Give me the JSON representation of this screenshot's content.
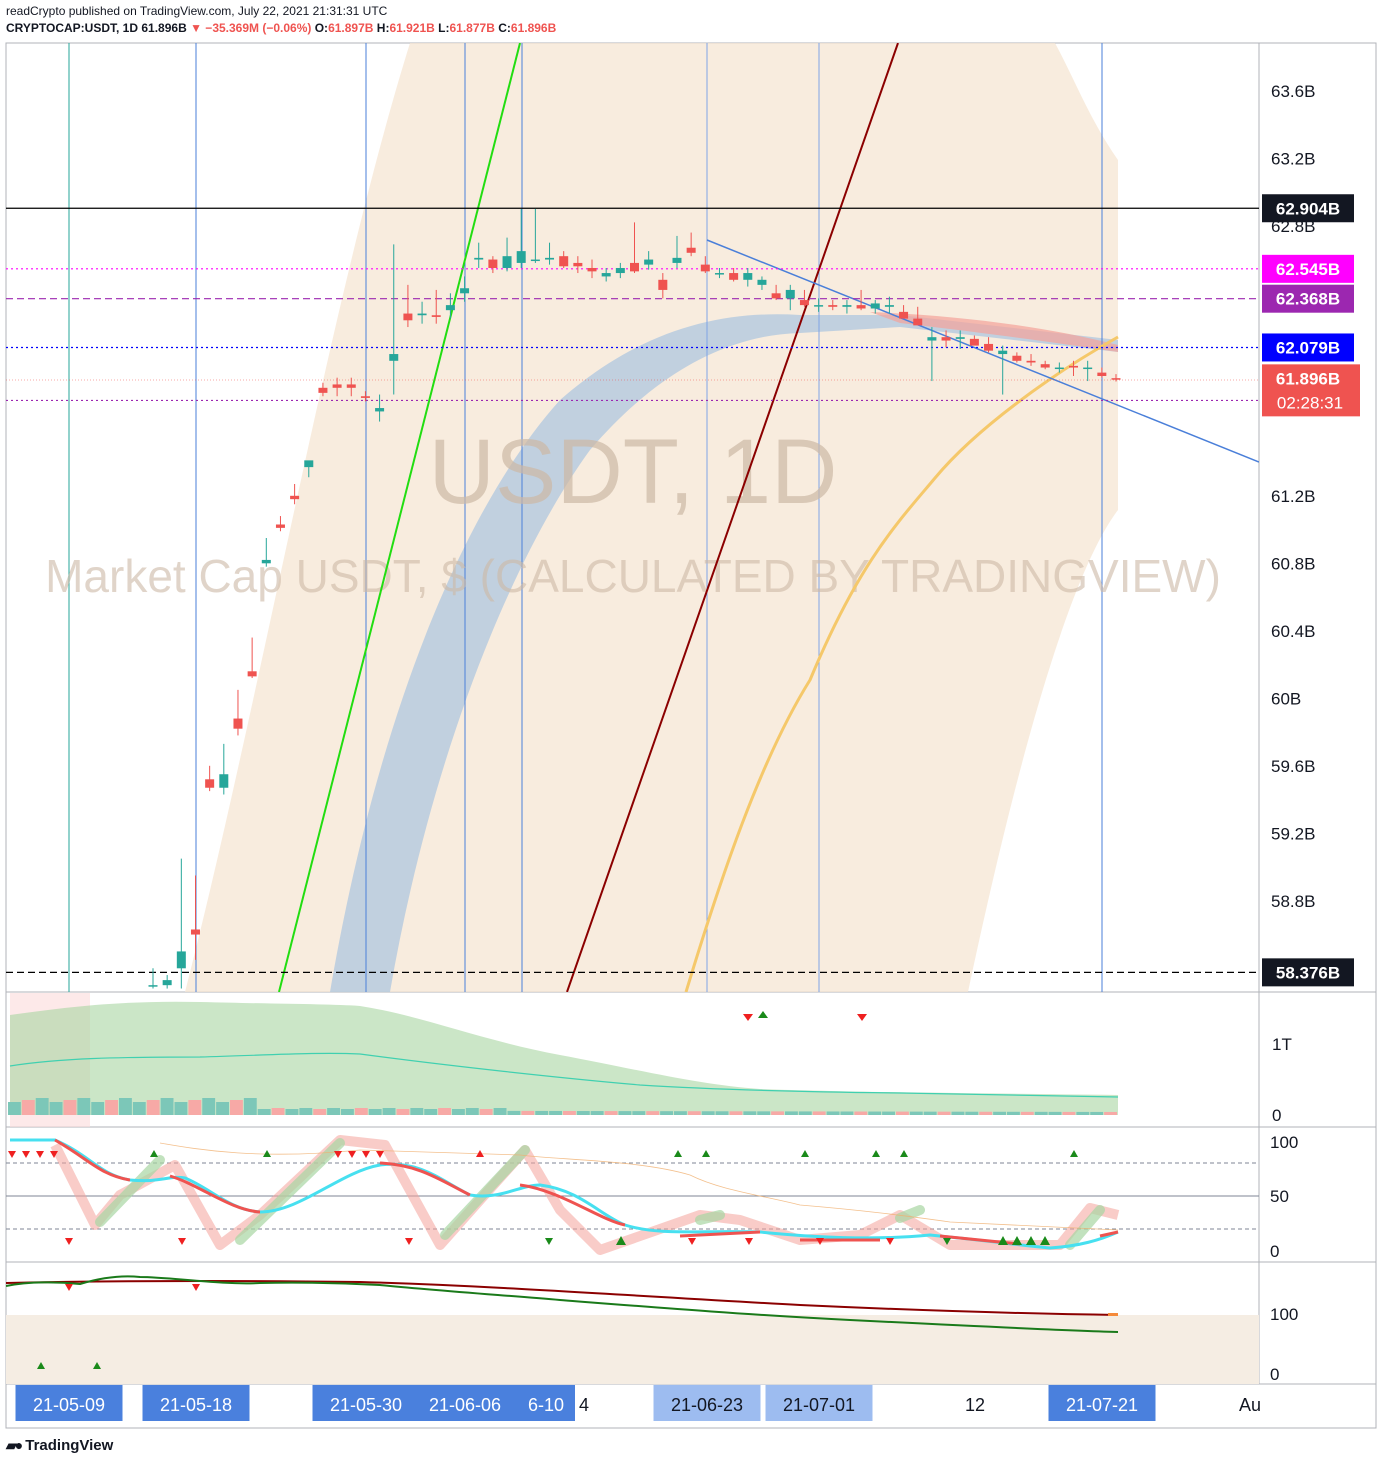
{
  "header": {
    "published_line": "readCrypto published on TradingView.com, July 22, 2021 21:31:31 UTC",
    "symbol_line": "CRYPTOCAP:USDT, 1D",
    "price": "61.896B",
    "change": "▼ −35.369M (−0.06%)",
    "open_label": "O:",
    "open": "61.897B",
    "high_label": "H:",
    "high": "61.921B",
    "low_label": "L:",
    "low": "61.877B",
    "close_label": "C:",
    "close": "61.896B"
  },
  "watermark": {
    "title": "USDT, 1D",
    "subtitle": "Market Cap USDT, $ (CALCULATED BY TRADINGVIEW)"
  },
  "footer": {
    "brand": "TradingView"
  },
  "colors": {
    "up": "#26a69a",
    "down": "#ef5350",
    "green_line": "#22dd11",
    "darkred_line": "#8b0000",
    "blue_trend": "#4a7fd9",
    "orange_ma": "#f5c86a",
    "band_fill": "#f5e6d3",
    "blue_band": "#a9c4e0",
    "magenta": "#ff00ff",
    "purple": "#9c27b0",
    "blue_level": "#0000ff",
    "date_label": "#4a80dd"
  },
  "chart_data": {
    "type": "candlestick",
    "y_axis": {
      "ticks": [
        "63.6B",
        "63.2B",
        "62.8B",
        "61.2B",
        "60.8B",
        "60.4B",
        "60B",
        "59.6B",
        "59.2B",
        "58.8B"
      ],
      "tick_values": [
        63.6,
        63.2,
        62.8,
        61.2,
        60.8,
        60.4,
        60.0,
        59.6,
        59.2,
        58.8
      ],
      "range": [
        58.28,
        63.9
      ]
    },
    "x_axis_labels": [
      "21-05-09",
      "21-05-18",
      "21-05-30",
      "21-06-06",
      "6-10",
      "4",
      "21-06-23",
      "21-07-01",
      "12",
      "21-07-21",
      "Au"
    ],
    "vertical_marker_dates": [
      "21-05-09",
      "21-05-18",
      "21-05-30",
      "21-06-06",
      "21-06-10",
      "21-06-23",
      "21-07-01",
      "21-07-21"
    ],
    "horizontal_levels": [
      {
        "value": 62.904,
        "label": "62.904B",
        "style": "solid",
        "color": "#000000"
      },
      {
        "value": 62.545,
        "label": "62.545B",
        "style": "dotted",
        "color": "#ff00ff"
      },
      {
        "value": 62.368,
        "label": "62.368B",
        "style": "dashed",
        "color": "#9c27b0"
      },
      {
        "value": 62.079,
        "label": "62.079B",
        "style": "dotted",
        "color": "#0000ff"
      },
      {
        "value": 61.765,
        "label": "61.765B",
        "style": "dotted",
        "color": "#9c27b0"
      },
      {
        "value": 58.376,
        "label": "58.376B",
        "style": "dashed",
        "color": "#000000"
      }
    ],
    "last_price": {
      "value": 61.896,
      "label": "61.896B",
      "countdown": "02:28:31"
    },
    "candles": [
      {
        "o": 58.3,
        "h": 58.4,
        "l": 58.28,
        "c": 58.3
      },
      {
        "o": 58.3,
        "h": 58.36,
        "l": 58.28,
        "c": 58.33
      },
      {
        "o": 58.4,
        "h": 59.05,
        "l": 58.28,
        "c": 58.5
      },
      {
        "o": 58.63,
        "h": 58.95,
        "l": 58.45,
        "c": 58.6
      },
      {
        "o": 59.52,
        "h": 59.6,
        "l": 59.45,
        "c": 59.47
      },
      {
        "o": 59.47,
        "h": 59.73,
        "l": 59.43,
        "c": 59.55
      },
      {
        "o": 59.88,
        "h": 60.05,
        "l": 59.78,
        "c": 59.82
      },
      {
        "o": 60.16,
        "h": 60.36,
        "l": 60.12,
        "c": 60.13
      },
      {
        "o": 60.8,
        "h": 60.95,
        "l": 60.78,
        "c": 60.82
      },
      {
        "o": 61.03,
        "h": 61.08,
        "l": 60.99,
        "c": 61.01
      },
      {
        "o": 61.2,
        "h": 61.27,
        "l": 61.15,
        "c": 61.18
      },
      {
        "o": 61.37,
        "h": 61.4,
        "l": 61.31,
        "c": 61.41
      },
      {
        "o": 61.84,
        "h": 61.87,
        "l": 61.79,
        "c": 61.81
      },
      {
        "o": 61.86,
        "h": 61.9,
        "l": 61.79,
        "c": 61.84
      },
      {
        "o": 61.86,
        "h": 61.9,
        "l": 61.79,
        "c": 61.84
      },
      {
        "o": 61.79,
        "h": 61.82,
        "l": 61.76,
        "c": 61.78
      },
      {
        "o": 61.7,
        "h": 61.8,
        "l": 61.64,
        "c": 61.72
      },
      {
        "o": 62.0,
        "h": 62.69,
        "l": 61.8,
        "c": 62.04
      },
      {
        "o": 62.28,
        "h": 62.45,
        "l": 62.2,
        "c": 62.24
      },
      {
        "o": 62.27,
        "h": 62.35,
        "l": 62.22,
        "c": 62.28
      },
      {
        "o": 62.27,
        "h": 62.42,
        "l": 62.22,
        "c": 62.26
      },
      {
        "o": 62.3,
        "h": 62.4,
        "l": 62.25,
        "c": 62.33
      },
      {
        "o": 62.4,
        "h": 62.5,
        "l": 62.35,
        "c": 62.43
      },
      {
        "o": 62.6,
        "h": 62.7,
        "l": 62.55,
        "c": 62.61
      },
      {
        "o": 62.6,
        "h": 62.62,
        "l": 62.52,
        "c": 62.55
      },
      {
        "o": 62.55,
        "h": 62.73,
        "l": 62.53,
        "c": 62.62
      },
      {
        "o": 62.58,
        "h": 62.9,
        "l": 62.55,
        "c": 62.65
      },
      {
        "o": 62.6,
        "h": 62.9,
        "l": 62.58,
        "c": 62.6
      },
      {
        "o": 62.6,
        "h": 62.7,
        "l": 62.57,
        "c": 62.61
      },
      {
        "o": 62.62,
        "h": 62.65,
        "l": 62.55,
        "c": 62.56
      },
      {
        "o": 62.58,
        "h": 62.62,
        "l": 62.52,
        "c": 62.56
      },
      {
        "o": 62.55,
        "h": 62.6,
        "l": 62.49,
        "c": 62.53
      },
      {
        "o": 62.5,
        "h": 62.55,
        "l": 62.47,
        "c": 62.52
      },
      {
        "o": 62.52,
        "h": 62.58,
        "l": 62.49,
        "c": 62.55
      },
      {
        "o": 62.58,
        "h": 62.82,
        "l": 62.52,
        "c": 62.53
      },
      {
        "o": 62.57,
        "h": 62.65,
        "l": 62.54,
        "c": 62.6
      },
      {
        "o": 62.48,
        "h": 62.52,
        "l": 62.37,
        "c": 62.42
      },
      {
        "o": 62.58,
        "h": 62.74,
        "l": 62.55,
        "c": 62.61
      },
      {
        "o": 62.67,
        "h": 62.76,
        "l": 62.62,
        "c": 62.64
      },
      {
        "o": 62.57,
        "h": 62.62,
        "l": 62.52,
        "c": 62.53
      },
      {
        "o": 62.52,
        "h": 62.55,
        "l": 62.49,
        "c": 62.52
      },
      {
        "o": 62.52,
        "h": 62.55,
        "l": 62.47,
        "c": 62.48
      },
      {
        "o": 62.48,
        "h": 62.55,
        "l": 62.44,
        "c": 62.52
      },
      {
        "o": 62.45,
        "h": 62.5,
        "l": 62.42,
        "c": 62.48
      },
      {
        "o": 62.4,
        "h": 62.45,
        "l": 62.36,
        "c": 62.37
      },
      {
        "o": 62.37,
        "h": 62.45,
        "l": 62.3,
        "c": 62.42
      },
      {
        "o": 62.36,
        "h": 62.42,
        "l": 62.32,
        "c": 62.33
      },
      {
        "o": 62.33,
        "h": 62.37,
        "l": 62.29,
        "c": 62.33
      },
      {
        "o": 62.33,
        "h": 62.36,
        "l": 62.3,
        "c": 62.32
      },
      {
        "o": 62.32,
        "h": 62.36,
        "l": 62.28,
        "c": 62.33
      },
      {
        "o": 62.33,
        "h": 62.42,
        "l": 62.3,
        "c": 62.31
      },
      {
        "o": 62.31,
        "h": 62.36,
        "l": 62.28,
        "c": 62.34
      },
      {
        "o": 62.32,
        "h": 62.38,
        "l": 62.28,
        "c": 62.33
      },
      {
        "o": 62.29,
        "h": 62.33,
        "l": 62.25,
        "c": 62.25
      },
      {
        "o": 62.25,
        "h": 62.32,
        "l": 62.21,
        "c": 62.21
      },
      {
        "o": 62.12,
        "h": 62.2,
        "l": 61.88,
        "c": 62.14
      },
      {
        "o": 62.14,
        "h": 62.18,
        "l": 62.08,
        "c": 62.12
      },
      {
        "o": 62.13,
        "h": 62.18,
        "l": 62.07,
        "c": 62.14
      },
      {
        "o": 62.13,
        "h": 62.15,
        "l": 62.1,
        "c": 62.09
      },
      {
        "o": 62.1,
        "h": 62.14,
        "l": 62.05,
        "c": 62.06
      },
      {
        "o": 62.04,
        "h": 62.09,
        "l": 61.8,
        "c": 62.06
      },
      {
        "o": 62.03,
        "h": 62.05,
        "l": 61.99,
        "c": 62.0
      },
      {
        "o": 62.0,
        "h": 62.04,
        "l": 61.97,
        "c": 61.99
      },
      {
        "o": 61.98,
        "h": 62.0,
        "l": 61.95,
        "c": 61.96
      },
      {
        "o": 61.96,
        "h": 61.99,
        "l": 61.93,
        "c": 61.96
      },
      {
        "o": 61.97,
        "h": 62.0,
        "l": 61.91,
        "c": 61.96
      },
      {
        "o": 61.96,
        "h": 62.0,
        "l": 61.88,
        "c": 61.96
      },
      {
        "o": 61.93,
        "h": 61.96,
        "l": 61.9,
        "c": 61.91
      },
      {
        "o": 61.897,
        "h": 61.921,
        "l": 61.877,
        "c": 61.896
      }
    ],
    "volume_panel": {
      "ticks": [
        "1T",
        "0"
      ],
      "tick_values": [
        1,
        0
      ]
    },
    "oscillator_panel": {
      "ticks": [
        "100",
        "50",
        "0"
      ],
      "tick_values": [
        100,
        50,
        0
      ],
      "levels": [
        80,
        50,
        20
      ]
    },
    "bottom_panel": {
      "ticks": [
        "100",
        "0"
      ],
      "tick_values": [
        100,
        0
      ]
    }
  }
}
